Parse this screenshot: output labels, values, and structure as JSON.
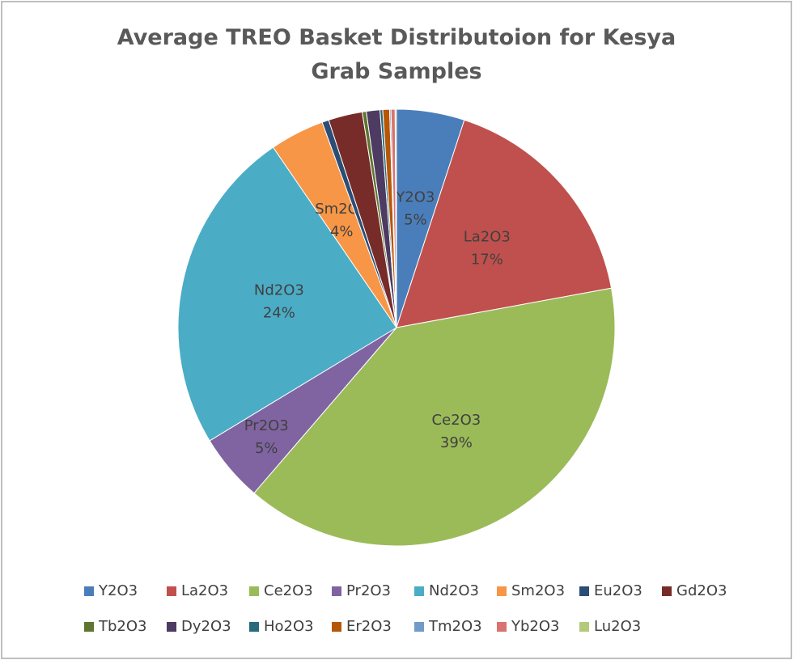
{
  "chart_data": {
    "type": "pie",
    "title": "Average TREO Basket Distributoion for Kesya Grab Samples",
    "categories": [
      "Y2O3",
      "La2O3",
      "Ce2O3",
      "Pr2O3",
      "Nd2O3",
      "Sm2O3",
      "Eu2O3",
      "Gd2O3",
      "Tb2O3",
      "Dy2O3",
      "Ho2O3",
      "Er2O3",
      "Tm2O3",
      "Yb2O3",
      "Lu2O3"
    ],
    "values": [
      5,
      17,
      39,
      5,
      24,
      4,
      0.5,
      2.5,
      0.3,
      1,
      0.2,
      0.5,
      0.1,
      0.3,
      0.1
    ],
    "value_labels": [
      "5%",
      "17%",
      "39%",
      "5%",
      "24%",
      "4%",
      null,
      null,
      null,
      null,
      null,
      null,
      null,
      null,
      null
    ],
    "colors": [
      "#4a7ebb",
      "#c0504d",
      "#9bbb59",
      "#8064a2",
      "#4bacc6",
      "#f79646",
      "#2c4d75",
      "#772c2a",
      "#5f7530",
      "#4d3b62",
      "#276a7c",
      "#b65708",
      "#729aca",
      "#d9736f",
      "#b3ca7d"
    ],
    "legend": "bottom"
  }
}
